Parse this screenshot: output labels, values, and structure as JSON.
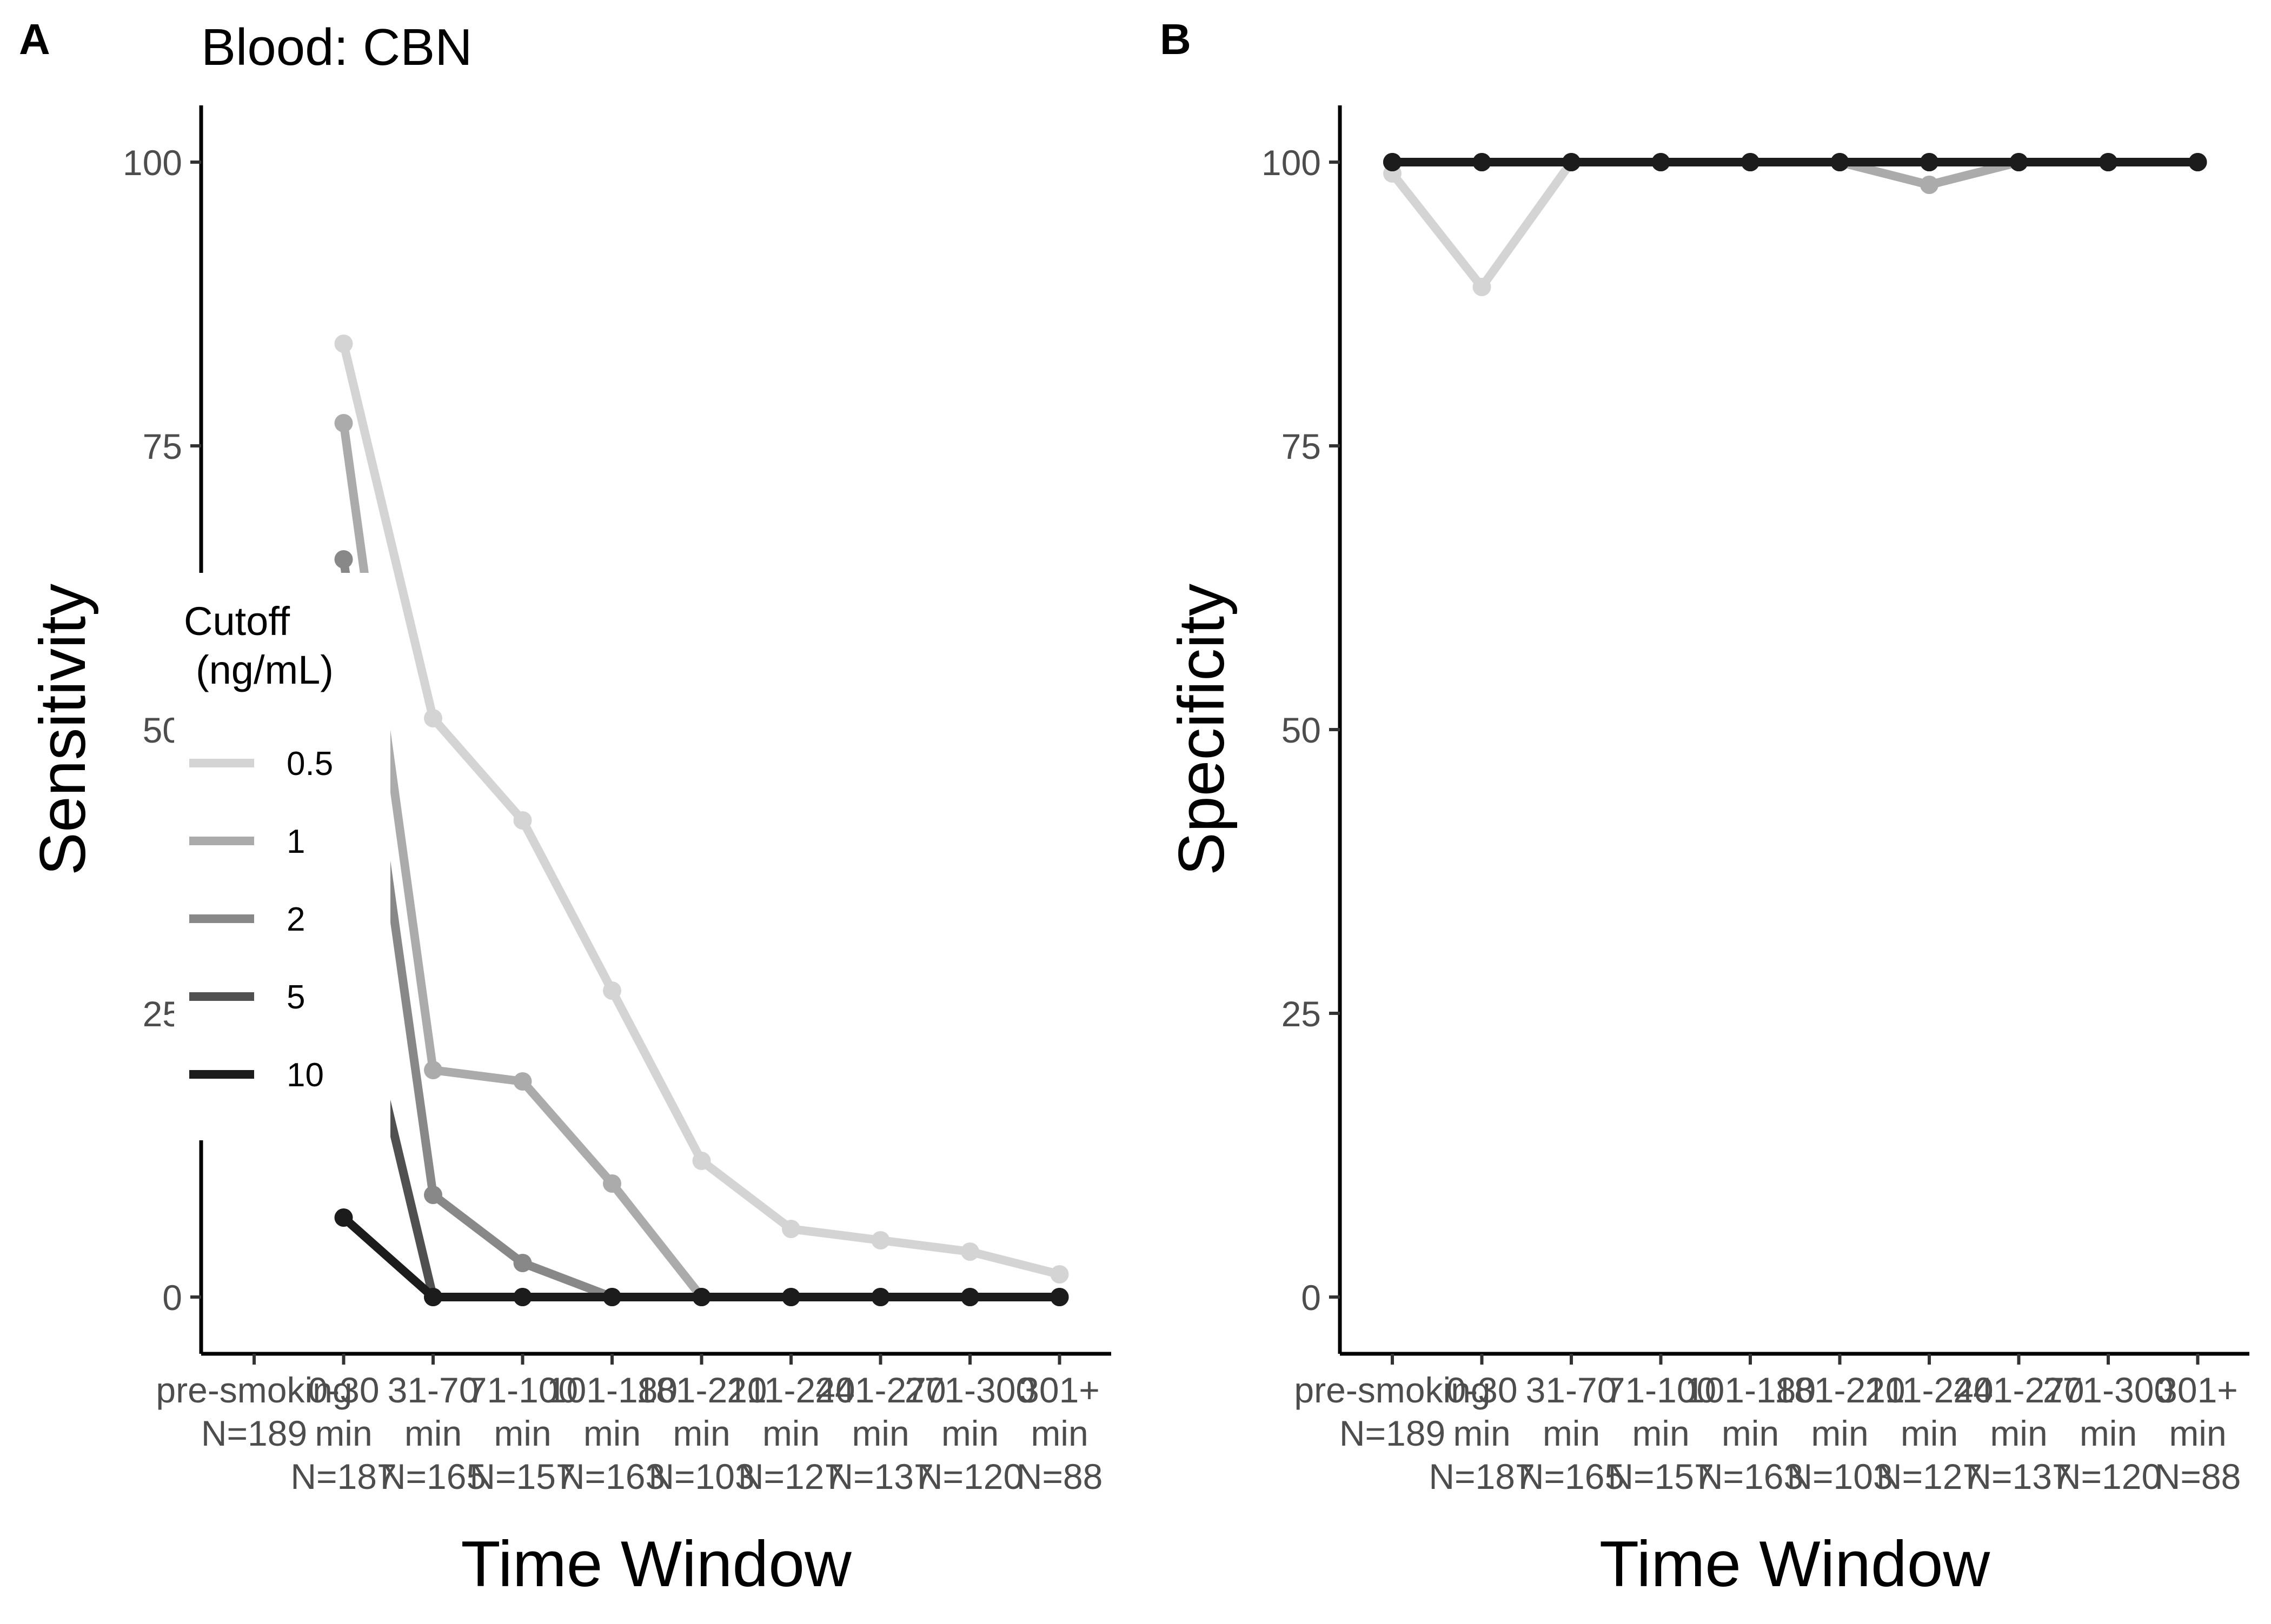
{
  "panel_labels": [
    "A",
    "B"
  ],
  "title": "Blood: CBN",
  "chart_data": [
    {
      "type": "line",
      "panel": "A",
      "title": "Blood: CBN",
      "xlabel": "Time Window",
      "ylabel": "Sensitivity",
      "ylim": [
        -5,
        105
      ],
      "yticks": [
        0,
        25,
        50,
        75,
        100
      ],
      "categories": [
        "pre-smoking\nN=189",
        "0-30\nmin\nN=187",
        "31-70\nmin\nN=165",
        "71-100\nmin\nN=157",
        "101-180\nmin\nN=163",
        "181-210\nmin\nN=103",
        "211-240\nmin\nN=127",
        "241-270\nmin\nN=137",
        "271-300\nmin\nN=120",
        "301+\nmin\nN=88"
      ],
      "legend": {
        "title": "Cutoff\n(ng/mL)",
        "position": "left-inside"
      },
      "series": [
        {
          "name": "0.5",
          "color": "#d4d4d4",
          "values": [
            null,
            84,
            51,
            42,
            27,
            12,
            6,
            5,
            4,
            2
          ]
        },
        {
          "name": "1",
          "color": "#ababab",
          "values": [
            null,
            77,
            20,
            19,
            10,
            0,
            0,
            0,
            0,
            0
          ]
        },
        {
          "name": "2",
          "color": "#888888",
          "values": [
            null,
            65,
            9,
            3,
            0,
            0,
            0,
            0,
            0,
            0
          ]
        },
        {
          "name": "5",
          "color": "#505050",
          "values": [
            null,
            33,
            0,
            0,
            0,
            0,
            0,
            0,
            0,
            0
          ]
        },
        {
          "name": "10",
          "color": "#1c1c1c",
          "values": [
            null,
            7,
            0,
            0,
            0,
            0,
            0,
            0,
            0,
            0
          ]
        }
      ]
    },
    {
      "type": "line",
      "panel": "B",
      "title": "",
      "xlabel": "Time Window",
      "ylabel": "Specificity",
      "ylim": [
        -5,
        105
      ],
      "yticks": [
        0,
        25,
        50,
        75,
        100
      ],
      "categories": [
        "pre-smoking\nN=189",
        "0-30\nmin\nN=187",
        "31-70\nmin\nN=165",
        "71-100\nmin\nN=157",
        "101-180\nmin\nN=163",
        "181-210\nmin\nN=103",
        "211-240\nmin\nN=127",
        "241-270\nmin\nN=137",
        "271-300\nmin\nN=120",
        "301+\nmin\nN=88"
      ],
      "series": [
        {
          "name": "0.5",
          "color": "#d4d4d4",
          "values": [
            99,
            89,
            100,
            100,
            100,
            100,
            98,
            100,
            100,
            100
          ]
        },
        {
          "name": "1",
          "color": "#ababab",
          "values": [
            100,
            100,
            100,
            100,
            100,
            100,
            98,
            100,
            100,
            100
          ]
        },
        {
          "name": "2",
          "color": "#888888",
          "values": [
            100,
            100,
            100,
            100,
            100,
            100,
            100,
            100,
            100,
            100
          ]
        },
        {
          "name": "5",
          "color": "#505050",
          "values": [
            100,
            100,
            100,
            100,
            100,
            100,
            100,
            100,
            100,
            100
          ]
        },
        {
          "name": "10",
          "color": "#1c1c1c",
          "values": [
            100,
            100,
            100,
            100,
            100,
            100,
            100,
            100,
            100,
            100
          ]
        }
      ]
    }
  ]
}
